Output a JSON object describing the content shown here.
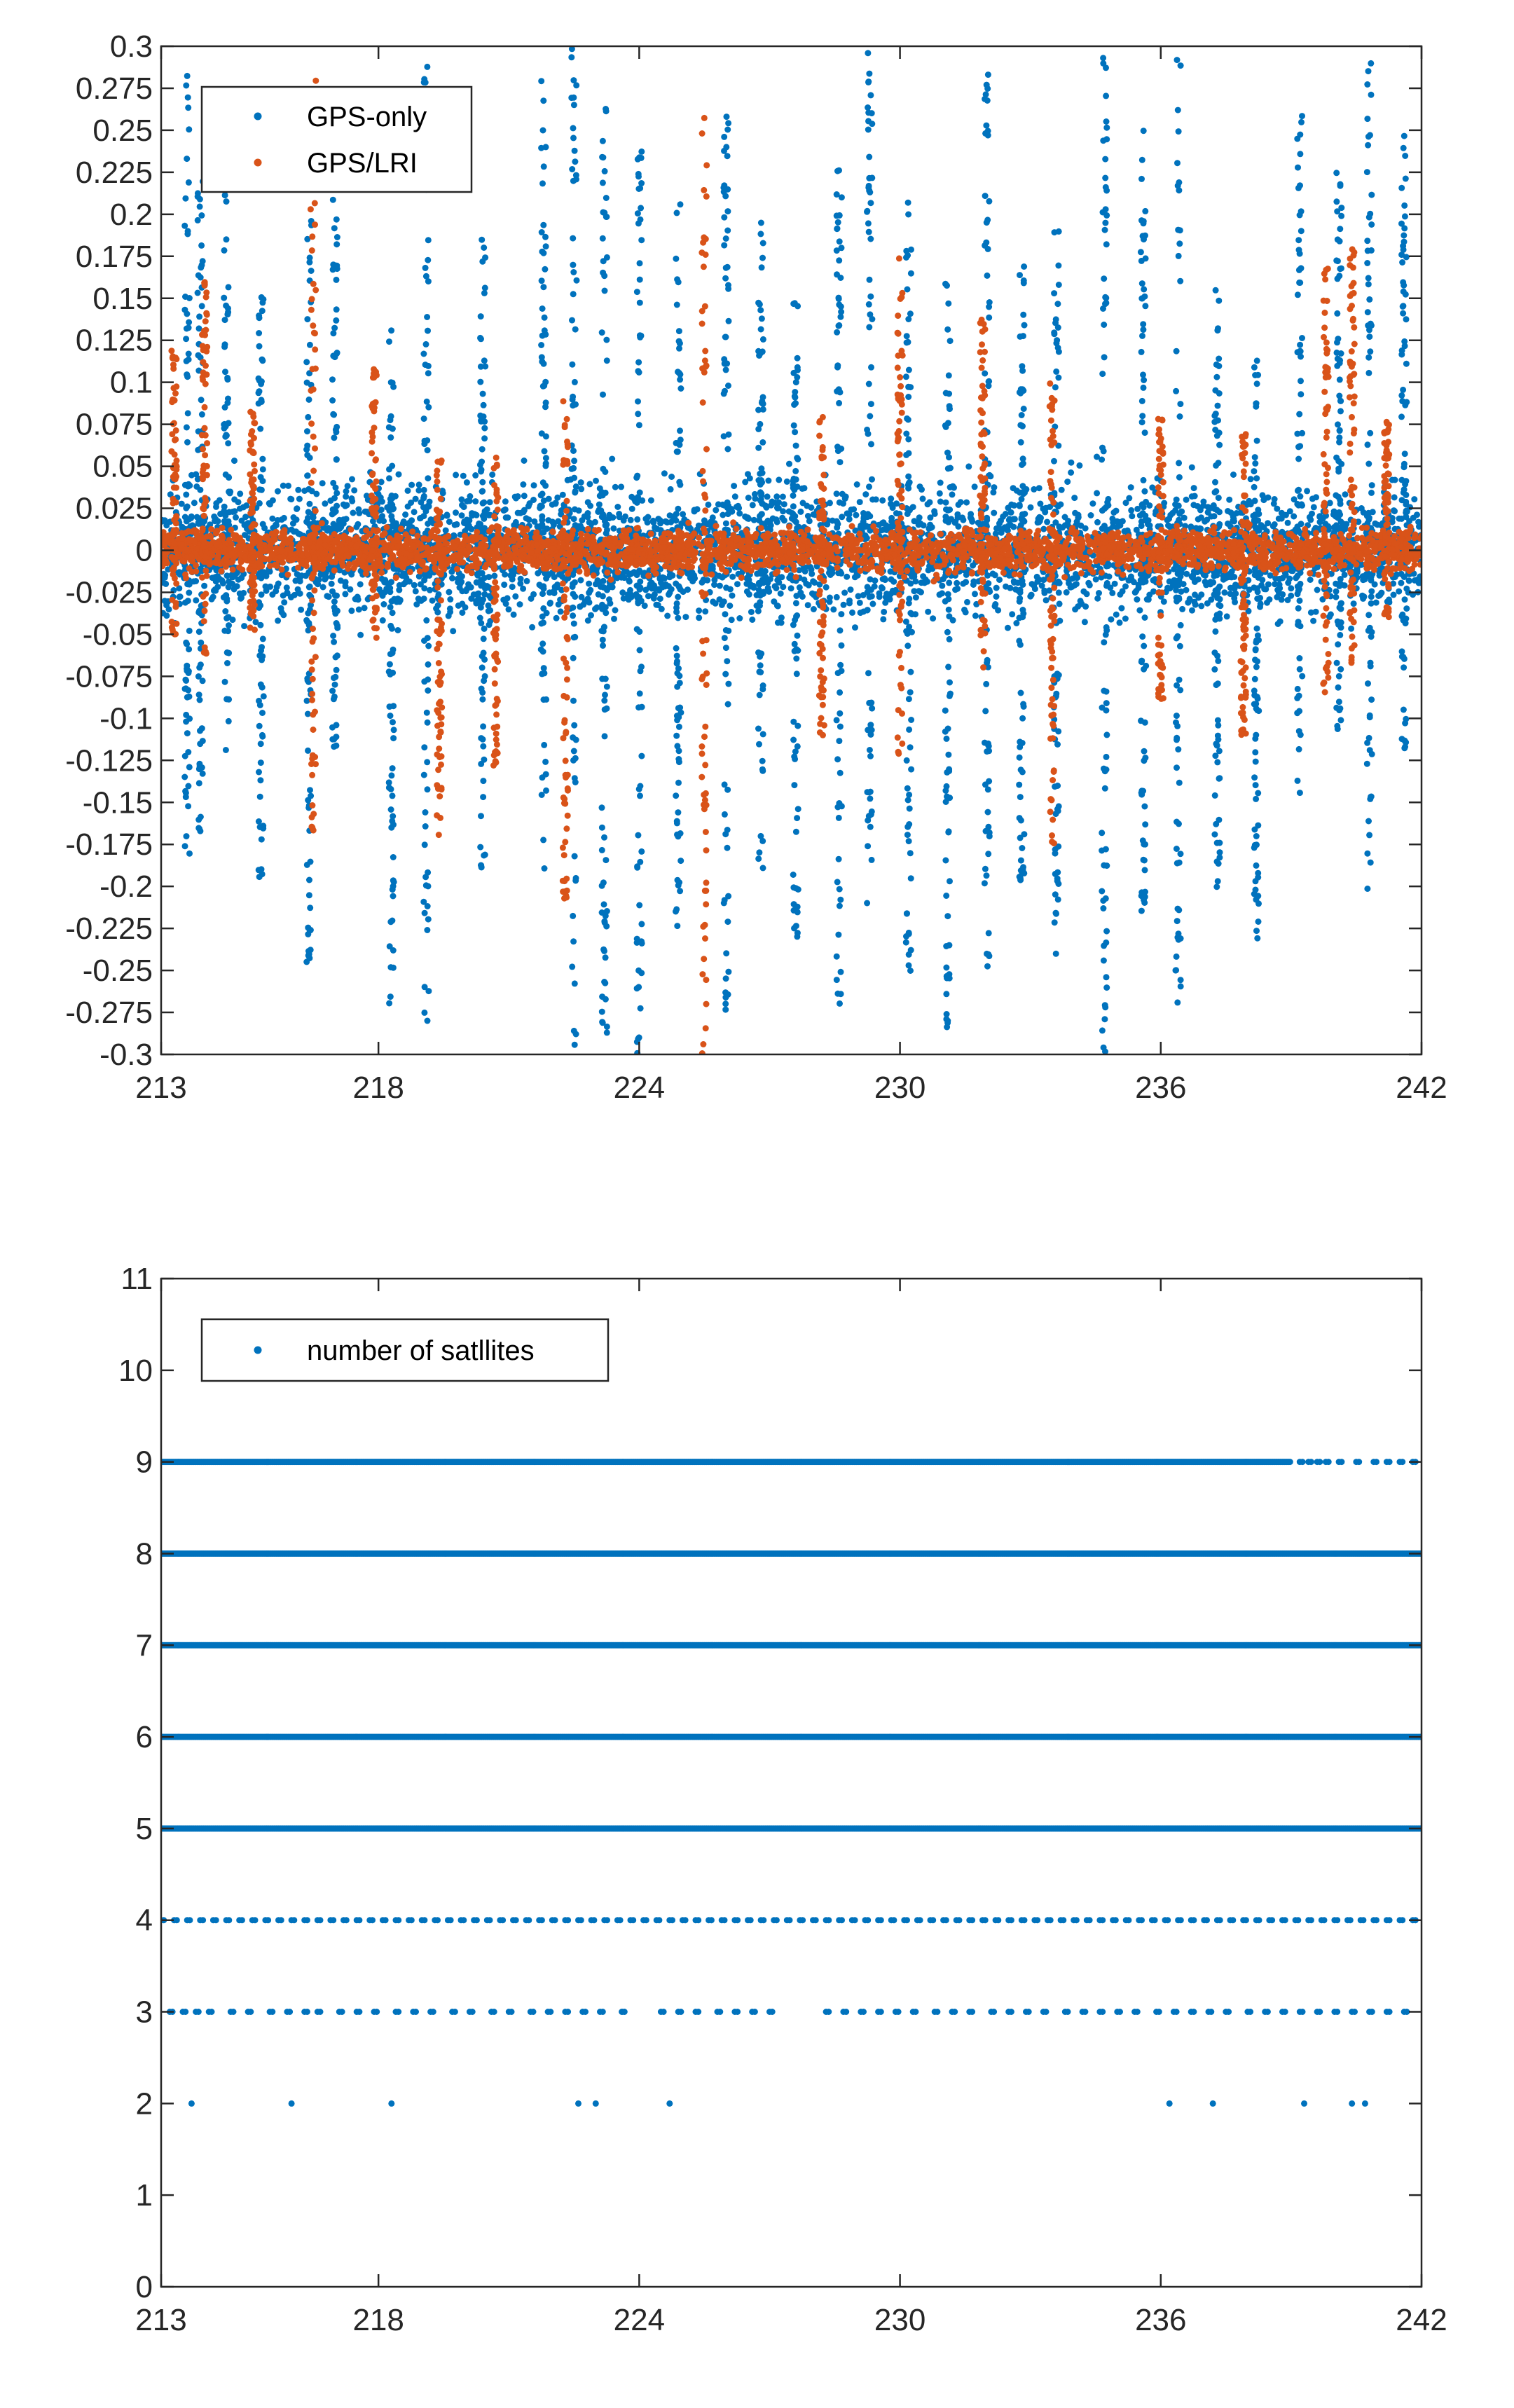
{
  "chart_data": [
    {
      "type": "scatter",
      "title": "",
      "xlabel": "",
      "ylabel": "",
      "xlim": [
        213,
        242
      ],
      "ylim": [
        -0.3,
        0.3
      ],
      "xticks": [
        "213",
        "218",
        "224",
        "230",
        "236",
        "242"
      ],
      "yticks": [
        "0.3",
        "0.275",
        "0.25",
        "0.225",
        "0.2",
        "0.175",
        "0.15",
        "0.125",
        "0.1",
        "0.075",
        "0.05",
        "0.025",
        "0",
        "-0.025",
        "-0.05",
        "-0.075",
        "-0.1",
        "-0.125",
        "-0.15",
        "-0.175",
        "-0.2",
        "-0.225",
        "-0.25",
        "-0.275",
        "-0.3"
      ],
      "grid": false,
      "legend_position": "top-left",
      "series": [
        {
          "name": "GPS-only",
          "color": "#0072BD",
          "typical_band": [
            -0.06,
            0.06
          ],
          "spikes": [
            {
              "x": 213.6,
              "y0": -0.19,
              "y1": 0.3
            },
            {
              "x": 213.9,
              "y0": -0.17,
              "y1": 0.22
            },
            {
              "x": 214.5,
              "y0": -0.12,
              "y1": 0.27
            },
            {
              "x": 215.3,
              "y0": -0.21,
              "y1": 0.16
            },
            {
              "x": 216.4,
              "y0": -0.25,
              "y1": 0.24
            },
            {
              "x": 217.0,
              "y0": -0.12,
              "y1": 0.21
            },
            {
              "x": 218.3,
              "y0": -0.27,
              "y1": 0.14
            },
            {
              "x": 219.1,
              "y0": -0.28,
              "y1": 0.29
            },
            {
              "x": 220.4,
              "y0": -0.2,
              "y1": 0.19
            },
            {
              "x": 221.8,
              "y0": -0.19,
              "y1": 0.29
            },
            {
              "x": 222.5,
              "y0": -0.3,
              "y1": 0.3
            },
            {
              "x": 223.2,
              "y0": -0.29,
              "y1": 0.27
            },
            {
              "x": 224.0,
              "y0": -0.3,
              "y1": 0.24
            },
            {
              "x": 224.9,
              "y0": -0.25,
              "y1": 0.21
            },
            {
              "x": 226.0,
              "y0": -0.28,
              "y1": 0.26
            },
            {
              "x": 226.8,
              "y0": -0.19,
              "y1": 0.2
            },
            {
              "x": 227.6,
              "y0": -0.23,
              "y1": 0.15
            },
            {
              "x": 228.6,
              "y0": -0.27,
              "y1": 0.23
            },
            {
              "x": 229.3,
              "y0": -0.21,
              "y1": 0.3
            },
            {
              "x": 230.2,
              "y0": -0.26,
              "y1": 0.21
            },
            {
              "x": 231.1,
              "y0": -0.29,
              "y1": 0.16
            },
            {
              "x": 232.0,
              "y0": -0.25,
              "y1": 0.3
            },
            {
              "x": 232.8,
              "y0": -0.2,
              "y1": 0.17
            },
            {
              "x": 233.6,
              "y0": -0.25,
              "y1": 0.19
            },
            {
              "x": 234.7,
              "y0": -0.3,
              "y1": 0.3
            },
            {
              "x": 235.6,
              "y0": -0.22,
              "y1": 0.25
            },
            {
              "x": 236.4,
              "y0": -0.28,
              "y1": 0.3
            },
            {
              "x": 237.3,
              "y0": -0.21,
              "y1": 0.16
            },
            {
              "x": 238.2,
              "y0": -0.25,
              "y1": 0.12
            },
            {
              "x": 239.2,
              "y0": -0.16,
              "y1": 0.26
            },
            {
              "x": 240.1,
              "y0": -0.11,
              "y1": 0.23
            },
            {
              "x": 240.8,
              "y0": -0.21,
              "y1": 0.29
            },
            {
              "x": 241.6,
              "y0": -0.12,
              "y1": 0.26
            }
          ]
        },
        {
          "name": "GPS/LRI",
          "color": "#D95319",
          "typical_band": [
            -0.02,
            0.02
          ],
          "spikes": [
            {
              "x": 213.3,
              "y0": -0.05,
              "y1": 0.12
            },
            {
              "x": 214.0,
              "y0": -0.07,
              "y1": 0.16
            },
            {
              "x": 215.1,
              "y0": -0.05,
              "y1": 0.09
            },
            {
              "x": 216.5,
              "y0": -0.17,
              "y1": 0.28
            },
            {
              "x": 217.9,
              "y0": -0.06,
              "y1": 0.11
            },
            {
              "x": 219.4,
              "y0": -0.17,
              "y1": 0.06
            },
            {
              "x": 220.7,
              "y0": -0.13,
              "y1": 0.06
            },
            {
              "x": 222.3,
              "y0": -0.21,
              "y1": 0.09
            },
            {
              "x": 225.5,
              "y0": -0.3,
              "y1": 0.27
            },
            {
              "x": 228.2,
              "y0": -0.11,
              "y1": 0.08
            },
            {
              "x": 230.0,
              "y0": -0.13,
              "y1": 0.18
            },
            {
              "x": 231.9,
              "y0": -0.07,
              "y1": 0.14
            },
            {
              "x": 233.5,
              "y0": -0.18,
              "y1": 0.1
            },
            {
              "x": 236.0,
              "y0": -0.09,
              "y1": 0.08
            },
            {
              "x": 237.9,
              "y0": -0.11,
              "y1": 0.07
            },
            {
              "x": 239.8,
              "y0": -0.1,
              "y1": 0.17
            },
            {
              "x": 240.4,
              "y0": -0.07,
              "y1": 0.18
            },
            {
              "x": 241.2,
              "y0": -0.04,
              "y1": 0.08
            }
          ]
        }
      ]
    },
    {
      "type": "scatter",
      "title": "",
      "xlabel": "",
      "ylabel": "",
      "xlim": [
        213,
        242
      ],
      "ylim": [
        0,
        11
      ],
      "xticks": [
        "213",
        "218",
        "224",
        "230",
        "236",
        "242"
      ],
      "yticks": [
        "0",
        "1",
        "2",
        "3",
        "4",
        "5",
        "6",
        "7",
        "8",
        "9",
        "10",
        "11"
      ],
      "grid": false,
      "legend_position": "top-left",
      "series": [
        {
          "name": "number of satllites",
          "color": "#0072BD",
          "continuous_levels": [
            {
              "y": 9,
              "x_start": 213,
              "x_end": 239.0
            },
            {
              "y": 8,
              "x_start": 213,
              "x_end": 242
            },
            {
              "y": 7,
              "x_start": 213,
              "x_end": 242
            },
            {
              "y": 6,
              "x_start": 213,
              "x_end": 242
            },
            {
              "y": 5,
              "x_start": 213,
              "x_end": 242
            }
          ],
          "points_y9": [
            239.2,
            239.4,
            239.6,
            239.8,
            240.1,
            240.5,
            240.9,
            241.2,
            241.5,
            241.8
          ],
          "points_y4": [
            213.0,
            213.3,
            213.6,
            213.9,
            214.2,
            214.5,
            214.8,
            215.1,
            215.4,
            215.7,
            216.0,
            216.3,
            216.6,
            216.9,
            217.2,
            217.5,
            217.8,
            218.1,
            218.4,
            218.7,
            219.0,
            219.3,
            219.6,
            219.9,
            220.2,
            220.5,
            220.8,
            221.1,
            221.4,
            221.7,
            222.0,
            222.3,
            222.6,
            222.9,
            223.2,
            223.5,
            223.8,
            224.1,
            224.4,
            224.7,
            225.0,
            225.3,
            225.6,
            225.9,
            226.2,
            226.5,
            226.8,
            227.1,
            227.4,
            227.7,
            228.0,
            228.3,
            228.6,
            228.9,
            229.2,
            229.5,
            229.8,
            230.1,
            230.4,
            230.7,
            231.0,
            231.3,
            231.6,
            231.9,
            232.2,
            232.5,
            232.8,
            233.1,
            233.4,
            233.7,
            234.0,
            234.3,
            234.6,
            234.9,
            235.2,
            235.5,
            235.8,
            236.1,
            236.4,
            236.7,
            237.0,
            237.3,
            237.6,
            237.9,
            238.2,
            238.5,
            238.8,
            239.1,
            239.4,
            239.7,
            240.0,
            240.3,
            240.6,
            240.9,
            241.2,
            241.5,
            241.8
          ],
          "points_y3": [
            213.2,
            213.5,
            213.8,
            214.1,
            214.6,
            215.0,
            215.5,
            215.9,
            216.3,
            216.6,
            217.1,
            217.5,
            217.9,
            218.4,
            218.8,
            219.2,
            219.7,
            220.1,
            220.6,
            221.0,
            221.5,
            221.9,
            222.3,
            222.7,
            223.1,
            223.6,
            224.5,
            224.9,
            225.3,
            225.8,
            226.2,
            226.6,
            227.0,
            228.3,
            228.7,
            229.1,
            229.5,
            229.9,
            230.3,
            230.8,
            231.2,
            231.6,
            232.1,
            232.5,
            232.9,
            233.3,
            233.8,
            234.2,
            234.6,
            235.0,
            235.4,
            235.9,
            236.3,
            236.7,
            237.1,
            237.5,
            238.0,
            238.4,
            238.8,
            239.2,
            239.6,
            240.0,
            240.4,
            240.8,
            241.2,
            241.6
          ],
          "points_y2": [
            213.7,
            216.0,
            218.3,
            222.6,
            223.0,
            224.7,
            236.2,
            237.2,
            239.3,
            240.4,
            240.7
          ]
        }
      ]
    }
  ]
}
